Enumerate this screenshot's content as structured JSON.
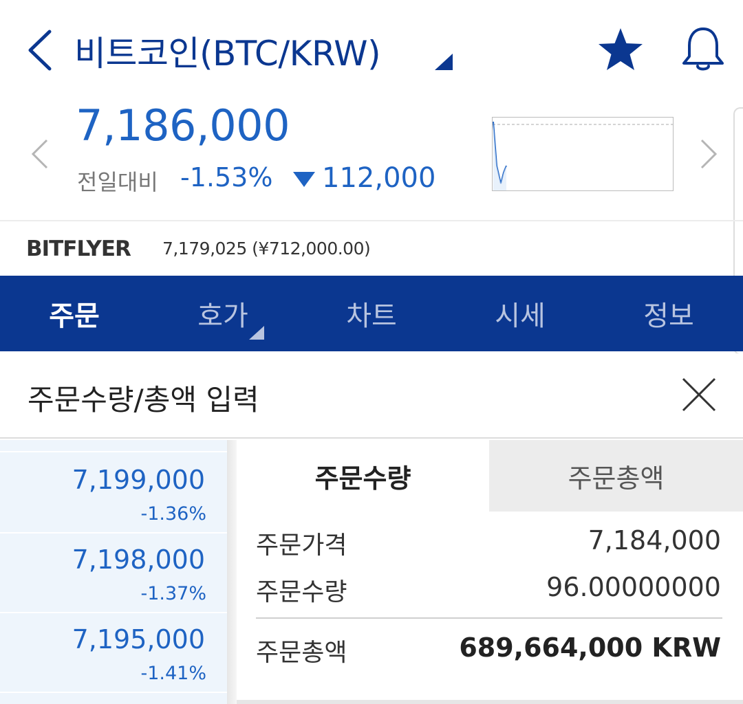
{
  "header": {
    "title": "비트코인(BTC/KRW)",
    "colors": {
      "brand": "#0b3790",
      "price": "#1e63c3"
    }
  },
  "price": {
    "current": "7,186,000",
    "change_label": "전일대비",
    "change_pct": "-1.53%",
    "change_amount": "112,000",
    "direction": "down"
  },
  "exchange": {
    "name": "BITFLYER",
    "value": "7,179,025 (¥712,000.00)"
  },
  "tabs": [
    {
      "label": "주문",
      "active": true
    },
    {
      "label": "호가",
      "active": false
    },
    {
      "label": "차트",
      "active": false
    },
    {
      "label": "시세",
      "active": false
    },
    {
      "label": "정보",
      "active": false
    }
  ],
  "modal": {
    "title": "주문수량/총액 입력"
  },
  "orderbook": {
    "rows": [
      {
        "price": "7,199,000",
        "pct": "-1.36%"
      },
      {
        "price": "7,198,000",
        "pct": "-1.37%"
      },
      {
        "price": "7,195,000",
        "pct": "-1.41%"
      }
    ]
  },
  "order": {
    "segments": {
      "quantity": "주문수량",
      "total": "주문총액"
    },
    "price_label": "주문가격",
    "price_value": "7,184,000",
    "qty_label": "주문수량",
    "qty_value": "96.00000000",
    "total_label": "주문총액",
    "total_value": "689,664,000 KRW"
  },
  "icons": [
    "back-icon",
    "caret-down-icon",
    "star-icon",
    "bell-icon",
    "chevron-left-icon",
    "chevron-right-icon",
    "triangle-down-icon",
    "close-icon"
  ]
}
